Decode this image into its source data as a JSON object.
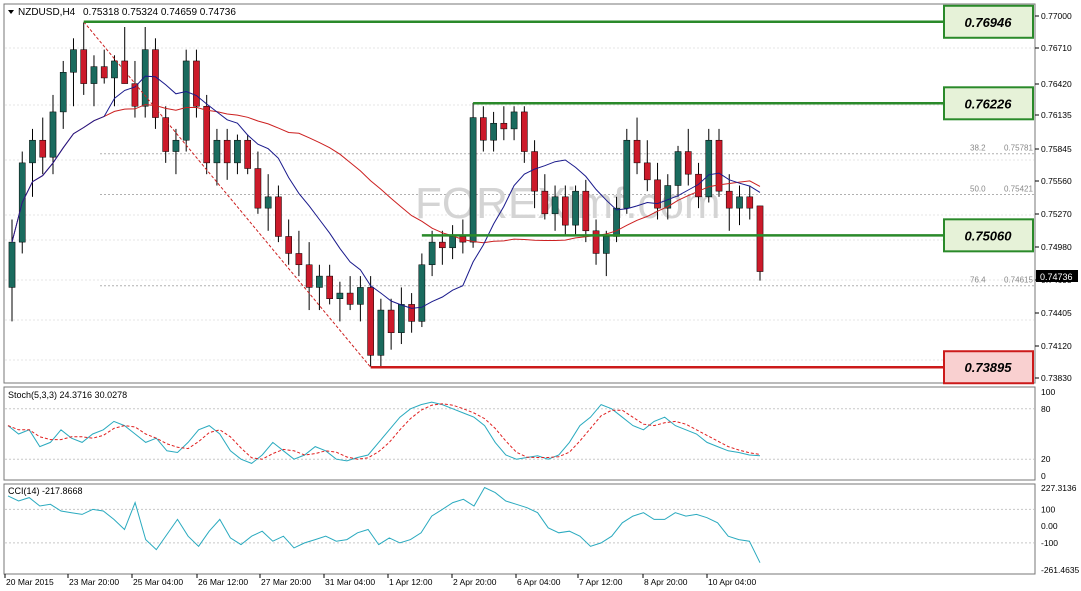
{
  "header": {
    "symbol": "NZDUSD,H4",
    "ohlc": "0.75318 0.75324 0.74659 0.74736"
  },
  "level_boxes": [
    {
      "label": "0.76946",
      "color": "#2a8a2a"
    },
    {
      "label": "0.76226",
      "color": "#2a8a2a"
    },
    {
      "label": "0.75060",
      "color": "#2a8a2a"
    },
    {
      "label": "0.73895",
      "color": "#cc1a1a"
    }
  ],
  "price_axis": [
    "0.77000",
    "0.76710",
    "0.76420",
    "0.76135",
    "0.75845",
    "0.75560",
    "0.75270",
    "0.74980",
    "0.74695",
    "0.74405",
    "0.74120",
    "0.73830"
  ],
  "current_price": "0.74736",
  "fib_labels": [
    {
      "level": "38.2",
      "price": "0.75781"
    },
    {
      "level": "50.0",
      "price": "0.75421"
    },
    {
      "level": "76.4",
      "price": "0.74615"
    }
  ],
  "watermark": "FOREXimf.com",
  "stoch": {
    "header": "Stoch(5,3,3) 24.3716 30.0278",
    "axis": [
      "100",
      "80",
      "20",
      "0"
    ]
  },
  "cci": {
    "header": "CCI(14) -217.8668",
    "axis": [
      "227.3136",
      "100",
      "0.00",
      "-100",
      "-261.4635"
    ]
  },
  "time_axis": [
    "20 Mar 2015",
    "23 Mar 20:00",
    "25 Mar 04:00",
    "26 Mar 12:00",
    "27 Mar 20:00",
    "31 Mar 04:00",
    "1 Apr 12:00",
    "2 Apr 20:00",
    "6 Apr 04:00",
    "7 Apr 12:00",
    "8 Apr 20:00",
    "10 Apr 04:00"
  ],
  "colors": {
    "bull": "#1a6b5e",
    "bear": "#cc1a2a",
    "ma_fast": "#1a1a8c",
    "ma_slow": "#cc2020",
    "osc": "#2aaabf",
    "signal": "#e02020"
  },
  "chart_data": {
    "type": "candlestick",
    "symbol": "NZDUSD",
    "timeframe": "H4",
    "candles": [
      [
        0.746,
        0.752,
        0.743,
        0.75
      ],
      [
        0.75,
        0.758,
        0.749,
        0.757
      ],
      [
        0.757,
        0.76,
        0.754,
        0.759
      ],
      [
        0.759,
        0.761,
        0.756,
        0.7575
      ],
      [
        0.7575,
        0.763,
        0.756,
        0.7615
      ],
      [
        0.7615,
        0.766,
        0.76,
        0.765
      ],
      [
        0.765,
        0.768,
        0.762,
        0.767
      ],
      [
        0.767,
        0.7694,
        0.763,
        0.764
      ],
      [
        0.764,
        0.7665,
        0.762,
        0.7655
      ],
      [
        0.7655,
        0.767,
        0.764,
        0.7645
      ],
      [
        0.7645,
        0.7665,
        0.762,
        0.766
      ],
      [
        0.766,
        0.769,
        0.764,
        0.764
      ],
      [
        0.764,
        0.766,
        0.761,
        0.762
      ],
      [
        0.762,
        0.769,
        0.761,
        0.767
      ],
      [
        0.767,
        0.768,
        0.76,
        0.761
      ],
      [
        0.761,
        0.762,
        0.757,
        0.758
      ],
      [
        0.758,
        0.76,
        0.756,
        0.759
      ],
      [
        0.759,
        0.767,
        0.758,
        0.766
      ],
      [
        0.766,
        0.767,
        0.761,
        0.762
      ],
      [
        0.762,
        0.763,
        0.756,
        0.757
      ],
      [
        0.757,
        0.76,
        0.755,
        0.759
      ],
      [
        0.759,
        0.76,
        0.7555,
        0.757
      ],
      [
        0.757,
        0.7595,
        0.756,
        0.759
      ],
      [
        0.759,
        0.7595,
        0.756,
        0.7565
      ],
      [
        0.7565,
        0.758,
        0.7525,
        0.753
      ],
      [
        0.753,
        0.756,
        0.751,
        0.754
      ],
      [
        0.754,
        0.755,
        0.75,
        0.7505
      ],
      [
        0.7505,
        0.752,
        0.748,
        0.749
      ],
      [
        0.749,
        0.751,
        0.747,
        0.748
      ],
      [
        0.748,
        0.75,
        0.744,
        0.746
      ],
      [
        0.746,
        0.748,
        0.744,
        0.747
      ],
      [
        0.747,
        0.748,
        0.7445,
        0.745
      ],
      [
        0.745,
        0.7465,
        0.743,
        0.7455
      ],
      [
        0.7455,
        0.747,
        0.744,
        0.7445
      ],
      [
        0.7445,
        0.747,
        0.743,
        0.746
      ],
      [
        0.746,
        0.747,
        0.739,
        0.74
      ],
      [
        0.74,
        0.745,
        0.739,
        0.744
      ],
      [
        0.744,
        0.745,
        0.7405,
        0.742
      ],
      [
        0.742,
        0.746,
        0.741,
        0.7445
      ],
      [
        0.7445,
        0.7455,
        0.742,
        0.743
      ],
      [
        0.743,
        0.749,
        0.7425,
        0.748
      ],
      [
        0.748,
        0.751,
        0.747,
        0.75
      ],
      [
        0.75,
        0.751,
        0.748,
        0.7495
      ],
      [
        0.7495,
        0.7515,
        0.7485,
        0.7505
      ],
      [
        0.7505,
        0.752,
        0.749,
        0.75
      ],
      [
        0.75,
        0.7623,
        0.7495,
        0.761
      ],
      [
        0.761,
        0.762,
        0.758,
        0.759
      ],
      [
        0.759,
        0.7615,
        0.758,
        0.7605
      ],
      [
        0.7605,
        0.762,
        0.759,
        0.76
      ],
      [
        0.76,
        0.762,
        0.759,
        0.7615
      ],
      [
        0.7615,
        0.762,
        0.757,
        0.758
      ],
      [
        0.758,
        0.759,
        0.753,
        0.7545
      ],
      [
        0.7545,
        0.756,
        0.752,
        0.7525
      ],
      [
        0.7525,
        0.755,
        0.751,
        0.754
      ],
      [
        0.754,
        0.755,
        0.7505,
        0.7515
      ],
      [
        0.7515,
        0.755,
        0.7505,
        0.7545
      ],
      [
        0.7545,
        0.7555,
        0.75,
        0.751
      ],
      [
        0.751,
        0.752,
        0.748,
        0.749
      ],
      [
        0.749,
        0.751,
        0.747,
        0.7505
      ],
      [
        0.7505,
        0.754,
        0.75,
        0.753
      ],
      [
        0.753,
        0.76,
        0.7525,
        0.759
      ],
      [
        0.759,
        0.761,
        0.756,
        0.757
      ],
      [
        0.757,
        0.759,
        0.7545,
        0.7555
      ],
      [
        0.7555,
        0.757,
        0.752,
        0.753
      ],
      [
        0.753,
        0.756,
        0.752,
        0.755
      ],
      [
        0.755,
        0.7585,
        0.754,
        0.758
      ],
      [
        0.758,
        0.76,
        0.755,
        0.756
      ],
      [
        0.756,
        0.757,
        0.753,
        0.754
      ],
      [
        0.754,
        0.76,
        0.7535,
        0.759
      ],
      [
        0.759,
        0.76,
        0.754,
        0.7545
      ],
      [
        0.7545,
        0.756,
        0.751,
        0.753
      ],
      [
        0.753,
        0.755,
        0.7515,
        0.754
      ],
      [
        0.754,
        0.755,
        0.752,
        0.753
      ],
      [
        0.7532,
        0.7532,
        0.7466,
        0.7474
      ]
    ],
    "horizontal_levels": [
      0.76946,
      0.76226,
      0.7506,
      0.73895
    ],
    "fibonacci": [
      {
        "level": 38.2,
        "price": 0.75781
      },
      {
        "level": 50.0,
        "price": 0.75421
      },
      {
        "level": 76.4,
        "price": 0.74615
      }
    ],
    "ylim": [
      0.738,
      0.7705
    ],
    "stochastic": {
      "k": 24.3716,
      "d": 30.0278,
      "levels": [
        80,
        20
      ]
    },
    "cci": {
      "value": -217.8668,
      "ylim": [
        -261.4635,
        227.3136
      ]
    }
  }
}
